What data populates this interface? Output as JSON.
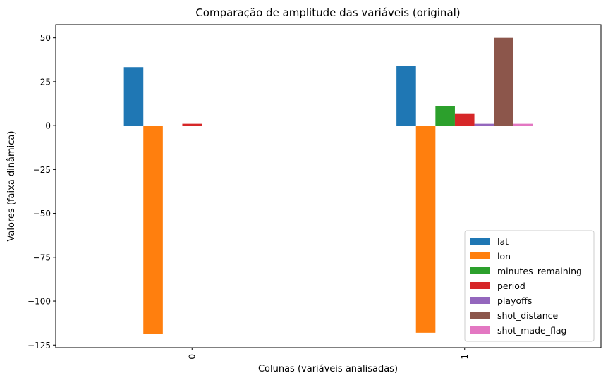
{
  "chart_data": {
    "type": "bar",
    "title": "Comparação de amplitude das variáveis (original)",
    "xlabel": "Colunas (variáveis analisadas)",
    "ylabel": "Valores (faixa dinâmica)",
    "categories": [
      "0",
      "1"
    ],
    "ylim": [
      -126.5,
      57.5
    ],
    "yticks": [
      50,
      25,
      0,
      -25,
      -50,
      -75,
      -100,
      -125
    ],
    "ytick_labels": [
      "50",
      "25",
      "0",
      "−25",
      "−50",
      "−75",
      "−100",
      "−125"
    ],
    "grid": false,
    "legend_position": "lower-right",
    "series": [
      {
        "name": "lat",
        "color": "#1f77b4",
        "values": [
          33.3,
          34.1
        ]
      },
      {
        "name": "lon",
        "color": "#ff7f0e",
        "values": [
          -118.5,
          -118.0
        ]
      },
      {
        "name": "minutes_remaining",
        "color": "#2ca02c",
        "values": [
          0,
          11
        ]
      },
      {
        "name": "period",
        "color": "#d62728",
        "values": [
          1,
          7
        ]
      },
      {
        "name": "playoffs",
        "color": "#9467bd",
        "values": [
          0,
          1
        ]
      },
      {
        "name": "shot_distance",
        "color": "#8c564b",
        "values": [
          0,
          50
        ]
      },
      {
        "name": "shot_made_flag",
        "color": "#e377c2",
        "values": [
          0,
          1
        ]
      }
    ]
  }
}
